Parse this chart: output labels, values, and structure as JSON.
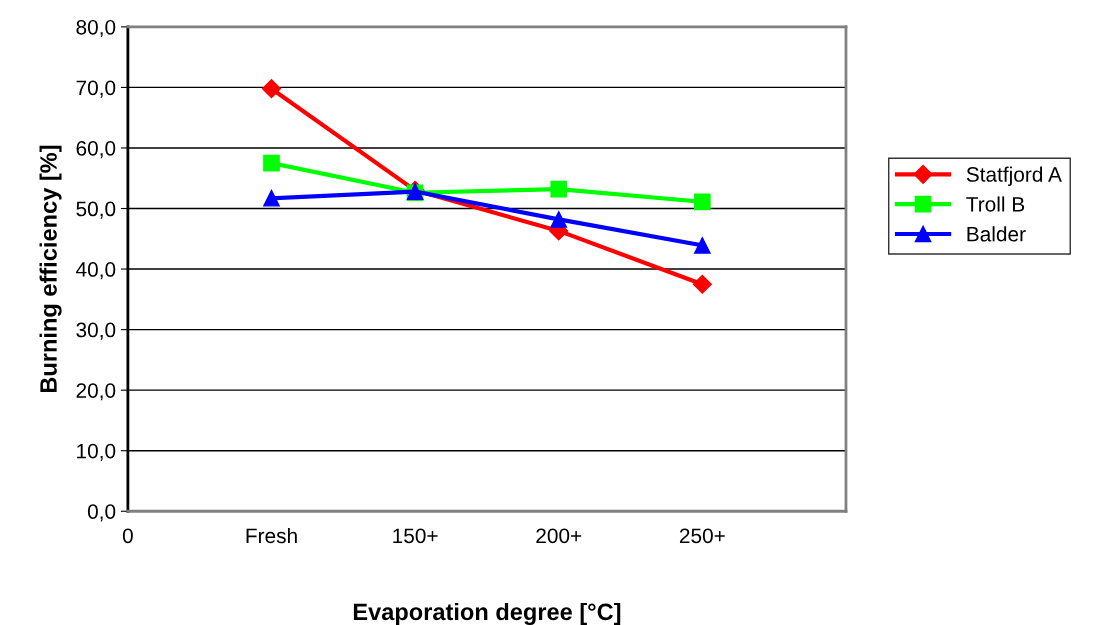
{
  "chart_data": {
    "type": "line",
    "xlabel": "Evaporation degree [°C]",
    "ylabel": "Burning efficiency [%]",
    "categories": [
      "0",
      "Fresh",
      "150+",
      "200+",
      "250+",
      null
    ],
    "ylim": [
      0,
      80
    ],
    "yticks": [
      {
        "value": 0,
        "label": "0,0"
      },
      {
        "value": 10,
        "label": "10,0"
      },
      {
        "value": 20,
        "label": "20,0"
      },
      {
        "value": 30,
        "label": "30,0"
      },
      {
        "value": 40,
        "label": "40,0"
      },
      {
        "value": 50,
        "label": "50,0"
      },
      {
        "value": 60,
        "label": "60,0"
      },
      {
        "value": 70,
        "label": "70,0"
      },
      {
        "value": 80,
        "label": "80,0"
      }
    ],
    "grid": "y",
    "legend": "right",
    "series": [
      {
        "name": "Statfjord A",
        "color": "#ff0000",
        "marker": "diamond",
        "values": [
          null,
          69.8,
          53.0,
          46.3,
          37.5,
          null
        ]
      },
      {
        "name": "Troll B",
        "color": "#00ff00",
        "marker": "square",
        "values": [
          null,
          57.5,
          52.6,
          53.2,
          51.1,
          null
        ]
      },
      {
        "name": "Balder",
        "color": "#0000ff",
        "marker": "triangle",
        "values": [
          null,
          51.7,
          52.8,
          48.2,
          43.9,
          null
        ]
      }
    ]
  }
}
